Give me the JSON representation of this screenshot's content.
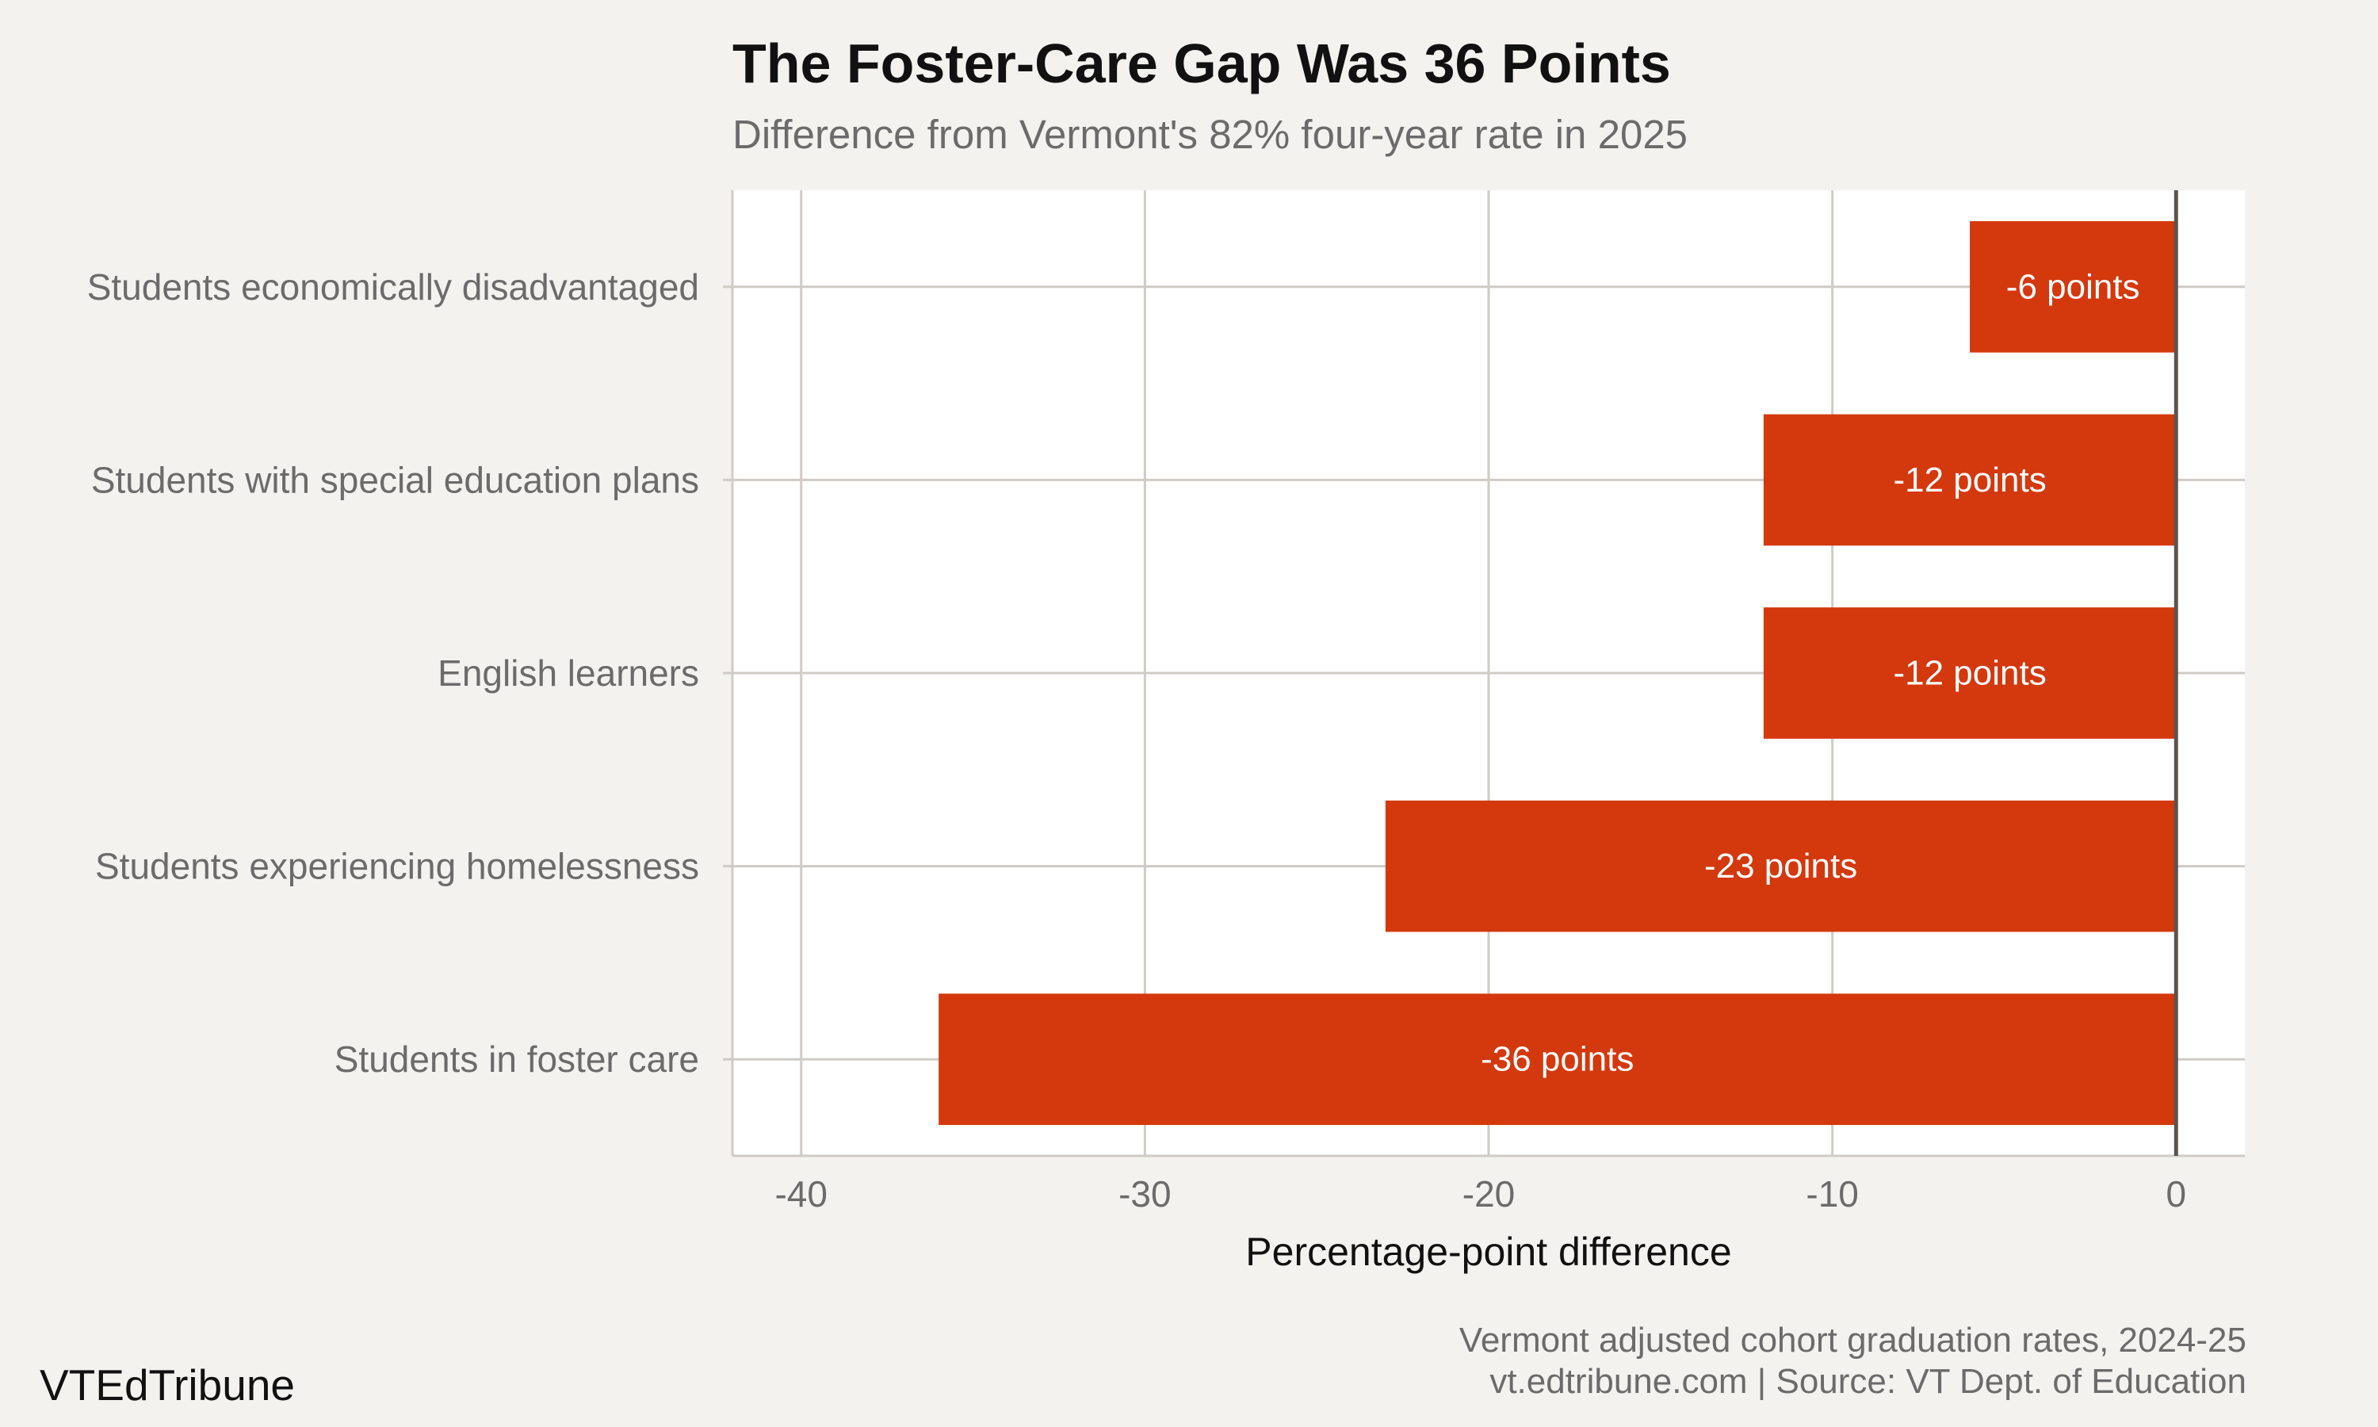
{
  "header": {
    "title": "The Foster-Care Gap Was 36 Points",
    "subtitle": "Difference from Vermont's 82% four-year rate in 2025"
  },
  "footer": {
    "brand": "VTEdTribune",
    "note_line1": "Vermont adjusted cohort graduation rates, 2024-25",
    "note_line2": "vt.edtribune.com | Source: VT Dept. of Education"
  },
  "colors": {
    "bar": "#d4380d",
    "background": "#f4f2ee",
    "plot_background": "#ffffff",
    "grid": "#cfcbc6",
    "zero_line": "#5a5450",
    "tick_text": "#6b6b6b",
    "bar_label_text": "#ffffff"
  },
  "chart_data": {
    "type": "bar",
    "orientation": "horizontal",
    "categories": [
      "Students economically disadvantaged",
      "Students with special education plans",
      "English learners",
      "Students experiencing homelessness",
      "Students in foster care"
    ],
    "values": [
      -6,
      -12,
      -12,
      -23,
      -36
    ],
    "data_labels": [
      "-6 points",
      "-12 points",
      "-12 points",
      "-23 points",
      "-36 points"
    ],
    "xlabel": "Percentage-point difference",
    "ylabel": "",
    "xlim": [
      -42,
      2
    ],
    "xticks": [
      -40,
      -30,
      -20,
      -10,
      0
    ],
    "xtick_labels": [
      "-40",
      "-30",
      "-20",
      "-10",
      "0"
    ],
    "grid": true
  }
}
